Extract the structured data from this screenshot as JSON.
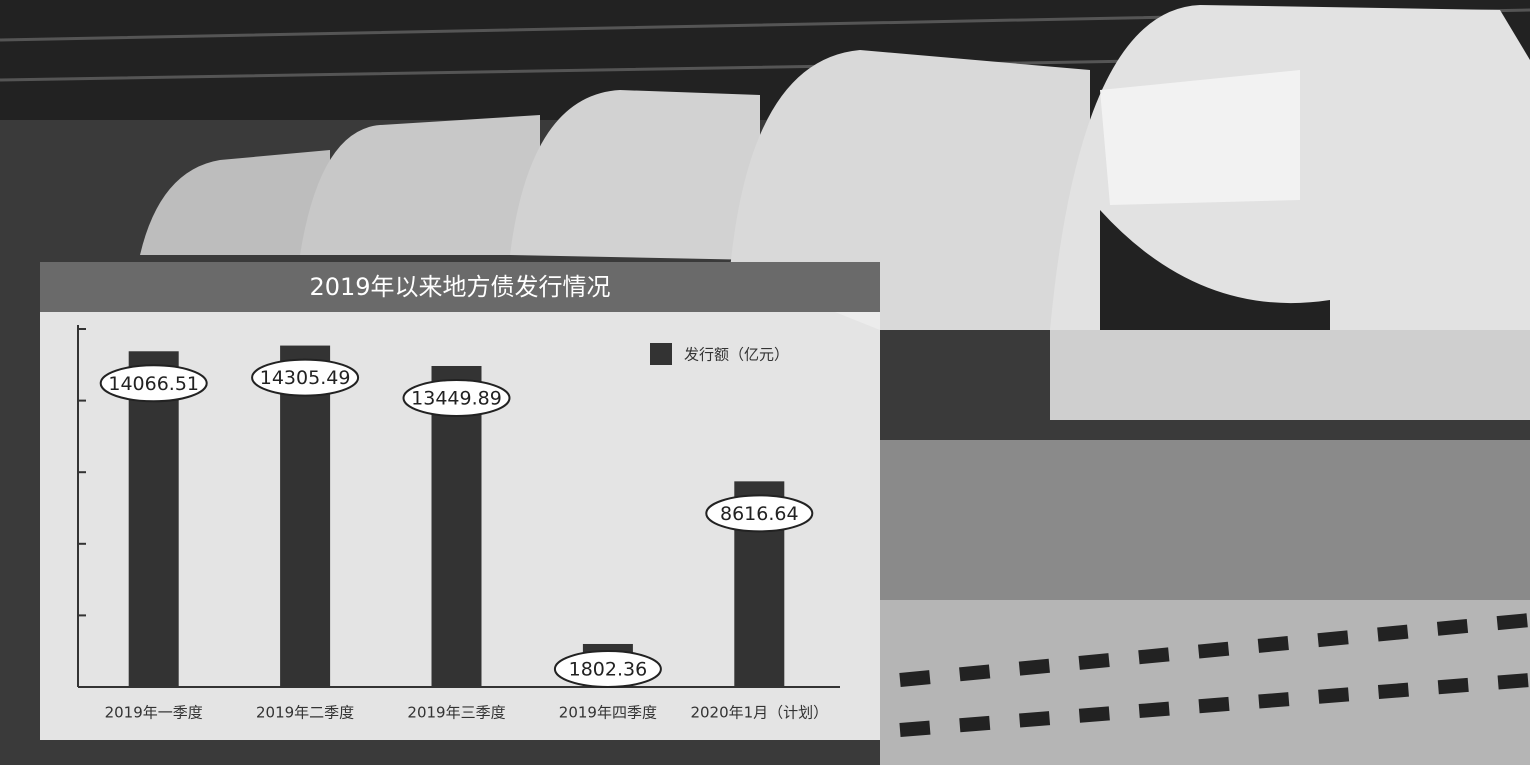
{
  "chart_data": {
    "type": "bar",
    "title": "2019年以来地方债发行情况",
    "categories": [
      "2019年一季度",
      "2019年二季度",
      "2019年三季度",
      "2019年四季度",
      "2020年1月（计划）"
    ],
    "series": [
      {
        "name": "发行额（亿元）",
        "color": "#333333",
        "values": [
          14066.51,
          14305.49,
          13449.89,
          1802.36,
          8616.64
        ]
      }
    ],
    "ylim": [
      0,
      15000
    ],
    "yticks": [
      0,
      3000,
      6000,
      9000,
      12000,
      15000
    ],
    "legend": "top-right"
  }
}
